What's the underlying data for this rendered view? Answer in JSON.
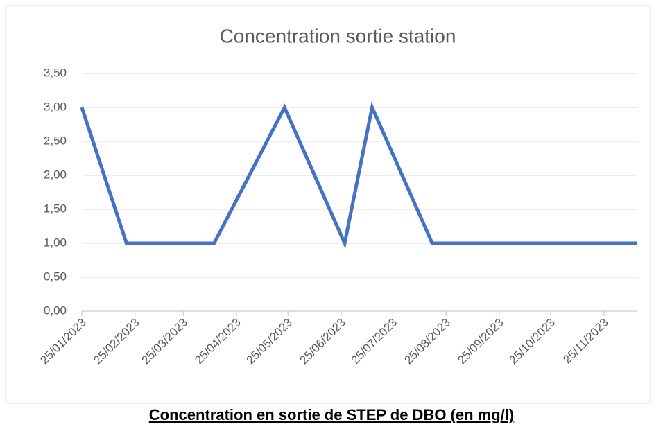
{
  "chart_data": {
    "type": "line",
    "title": "Concentration sortie station",
    "x": [
      "25/01/2023",
      "20/02/2023",
      "12/04/2023",
      "23/05/2023",
      "27/06/2023",
      "13/07/2023",
      "17/08/2023",
      "14/12/2023"
    ],
    "series": [
      {
        "name": "Concentration sortie station",
        "color": "#4472c4",
        "values": [
          3,
          1,
          1,
          3,
          1,
          3,
          1,
          1
        ]
      }
    ],
    "xlim": [
      "25/01/2023",
      "14/12/2023"
    ],
    "xticks": [
      "25/01/2023",
      "25/02/2023",
      "25/03/2023",
      "25/04/2023",
      "25/05/2023",
      "25/06/2023",
      "25/07/2023",
      "25/08/2023",
      "25/09/2023",
      "25/10/2023",
      "25/11/2023"
    ],
    "ylim": [
      0,
      3.5
    ],
    "yticks": [
      {
        "value": 0,
        "label": "0,00"
      },
      {
        "value": 0.5,
        "label": "0,50"
      },
      {
        "value": 1,
        "label": "1,00"
      },
      {
        "value": 1.5,
        "label": "1,50"
      },
      {
        "value": 2,
        "label": "2,00"
      },
      {
        "value": 2.5,
        "label": "2,50"
      },
      {
        "value": 3,
        "label": "3,00"
      },
      {
        "value": 3.5,
        "label": "3,50"
      }
    ],
    "grid": true
  },
  "caption": "Concentration en sortie de STEP de DBO (en mg/l)"
}
